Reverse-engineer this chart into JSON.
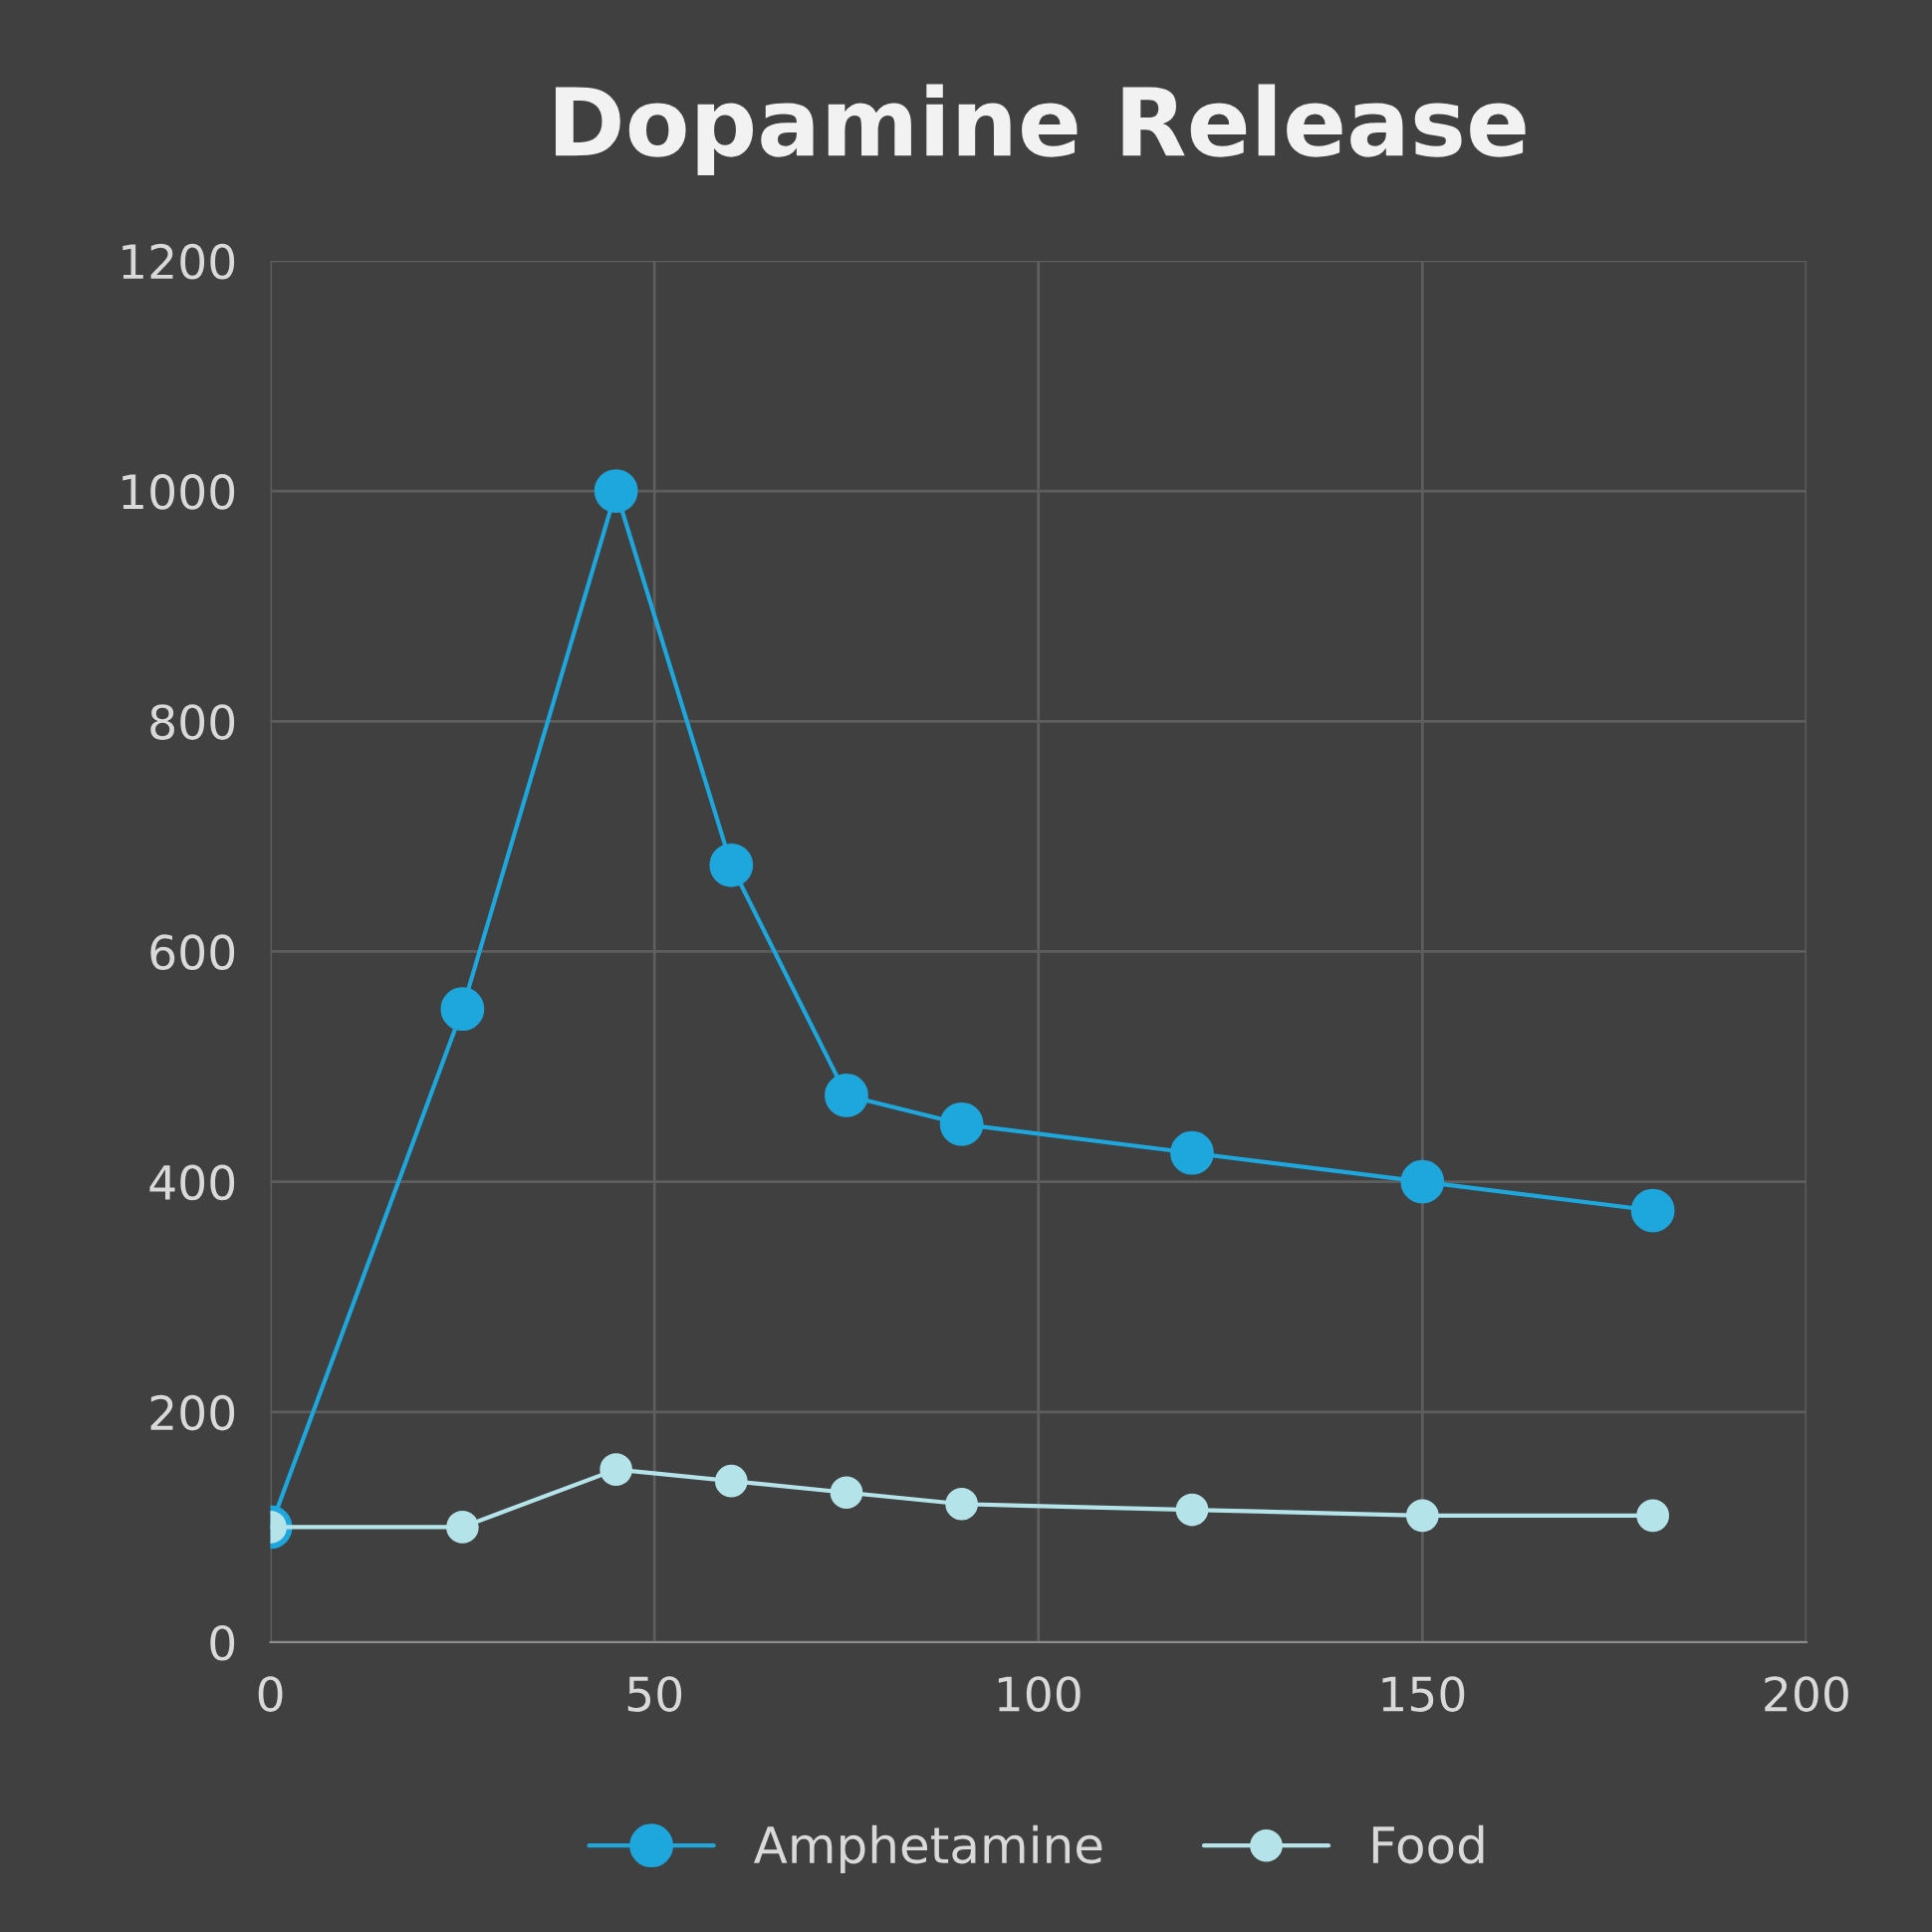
{
  "chart_data": {
    "type": "line",
    "title": "Dopamine Release",
    "x": [
      0,
      25,
      45,
      60,
      75,
      90,
      120,
      150,
      180
    ],
    "series": [
      {
        "name": "Amphetamine",
        "color": "#1ea7dc",
        "values": [
          100,
          550,
          1000,
          675,
          475,
          450,
          425,
          400,
          375
        ]
      },
      {
        "name": "Food",
        "color": "#b4e3ea",
        "values": [
          100,
          100,
          150,
          140,
          130,
          120,
          115,
          110,
          110
        ]
      }
    ],
    "xlim": [
      0,
      200
    ],
    "xticks": [
      0,
      50,
      100,
      150,
      200
    ],
    "ylim": [
      0,
      1200
    ],
    "yticks": [
      0,
      200,
      400,
      600,
      800,
      1000,
      1200
    ],
    "grid": true,
    "legend": "bottom",
    "marker": "circle",
    "line_style": "solid"
  }
}
